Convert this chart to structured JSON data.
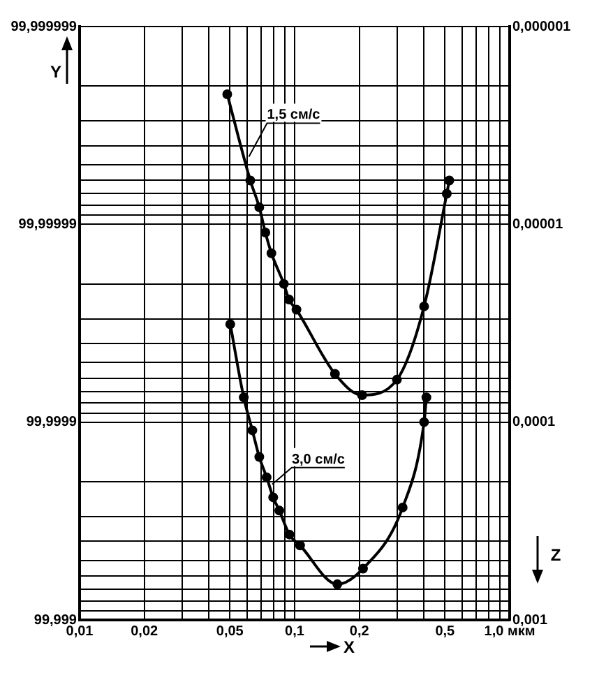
{
  "chart_data": {
    "type": "line",
    "xlabel": "X",
    "ylabel": "Z",
    "annotations": [
      "Y",
      "99,999999",
      "99,99999",
      "99,9999",
      "99,999"
    ],
    "xlim": [
      0.01,
      1.0
    ],
    "xticks": [
      {
        "value": 0.01,
        "label": "0,01"
      },
      {
        "value": 0.02,
        "label": "0,02"
      },
      {
        "value": 0.03,
        "label": null
      },
      {
        "value": 0.04,
        "label": null
      },
      {
        "value": 0.05,
        "label": "0,05"
      },
      {
        "value": 0.06,
        "label": null
      },
      {
        "value": 0.07,
        "label": null
      },
      {
        "value": 0.08,
        "label": null
      },
      {
        "value": 0.09,
        "label": null
      },
      {
        "value": 0.1,
        "label": "0,1"
      },
      {
        "value": 0.2,
        "label": "0,2"
      },
      {
        "value": 0.3,
        "label": null
      },
      {
        "value": 0.4,
        "label": null
      },
      {
        "value": 0.5,
        "label": "0,5"
      },
      {
        "value": 0.6,
        "label": null
      },
      {
        "value": 0.7,
        "label": null
      },
      {
        "value": 0.8,
        "label": null
      },
      {
        "value": 0.9,
        "label": null
      },
      {
        "value": 1.0,
        "label": "1,0 мкм"
      }
    ],
    "ylim": [
      0.001,
      1e-06
    ],
    "yticks": [
      {
        "value": 1e-06,
        "label": "0,000001"
      },
      {
        "value": 2e-06,
        "label": null
      },
      {
        "value": 3e-06,
        "label": null
      },
      {
        "value": 4e-06,
        "label": null
      },
      {
        "value": 5e-06,
        "label": null
      },
      {
        "value": 6e-06,
        "label": null
      },
      {
        "value": 7e-06,
        "label": null
      },
      {
        "value": 8e-06,
        "label": null
      },
      {
        "value": 9e-06,
        "label": null
      },
      {
        "value": 1e-05,
        "label": "0,00001"
      },
      {
        "value": 2e-05,
        "label": null
      },
      {
        "value": 3e-05,
        "label": null
      },
      {
        "value": 4e-05,
        "label": null
      },
      {
        "value": 5e-05,
        "label": null
      },
      {
        "value": 6e-05,
        "label": null
      },
      {
        "value": 7e-05,
        "label": null
      },
      {
        "value": 8e-05,
        "label": null
      },
      {
        "value": 9e-05,
        "label": null
      },
      {
        "value": 0.0001,
        "label": "0,0001"
      },
      {
        "value": 0.0002,
        "label": null
      },
      {
        "value": 0.0003,
        "label": null
      },
      {
        "value": 0.0004,
        "label": null
      },
      {
        "value": 0.0005,
        "label": null
      },
      {
        "value": 0.0006,
        "label": null
      },
      {
        "value": 0.0007,
        "label": null
      },
      {
        "value": 0.0008,
        "label": null
      },
      {
        "value": 0.0009,
        "label": null
      },
      {
        "value": 0.001,
        "label": "0,001"
      }
    ],
    "log": "xy",
    "grid": true,
    "legend": false,
    "marker": "circle",
    "line_style": "solid",
    "series": [
      {
        "name": "1,5 см/с",
        "color": "#000000",
        "x": [
          0.0486,
          0.0622,
          0.0685,
          0.0731,
          0.078,
          0.0891,
          0.0942,
          0.102,
          0.154,
          0.206,
          0.299,
          0.4,
          0.51,
          0.524
        ],
        "values": [
          2.2e-06,
          6e-06,
          8.2e-06,
          1.1e-05,
          1.4e-05,
          2e-05,
          2.4e-05,
          2.7e-05,
          5.7e-05,
          7.3e-05,
          6.1e-05,
          2.6e-05,
          7e-06,
          6e-06
        ]
      },
      {
        "name": "3,0 см/с",
        "color": "#000000",
        "x": [
          0.0502,
          0.058,
          0.0636,
          0.0685,
          0.0741,
          0.0795,
          0.0849,
          0.0946,
          0.106,
          0.158,
          0.208,
          0.318,
          0.4,
          0.41
        ],
        "values": [
          3.2e-05,
          7.5e-05,
          0.00011,
          0.00015,
          0.00019,
          0.00024,
          0.00028,
          0.00037,
          0.00042,
          0.00066,
          0.00055,
          0.00027,
          0.0001,
          7.5e-05
        ]
      }
    ]
  }
}
